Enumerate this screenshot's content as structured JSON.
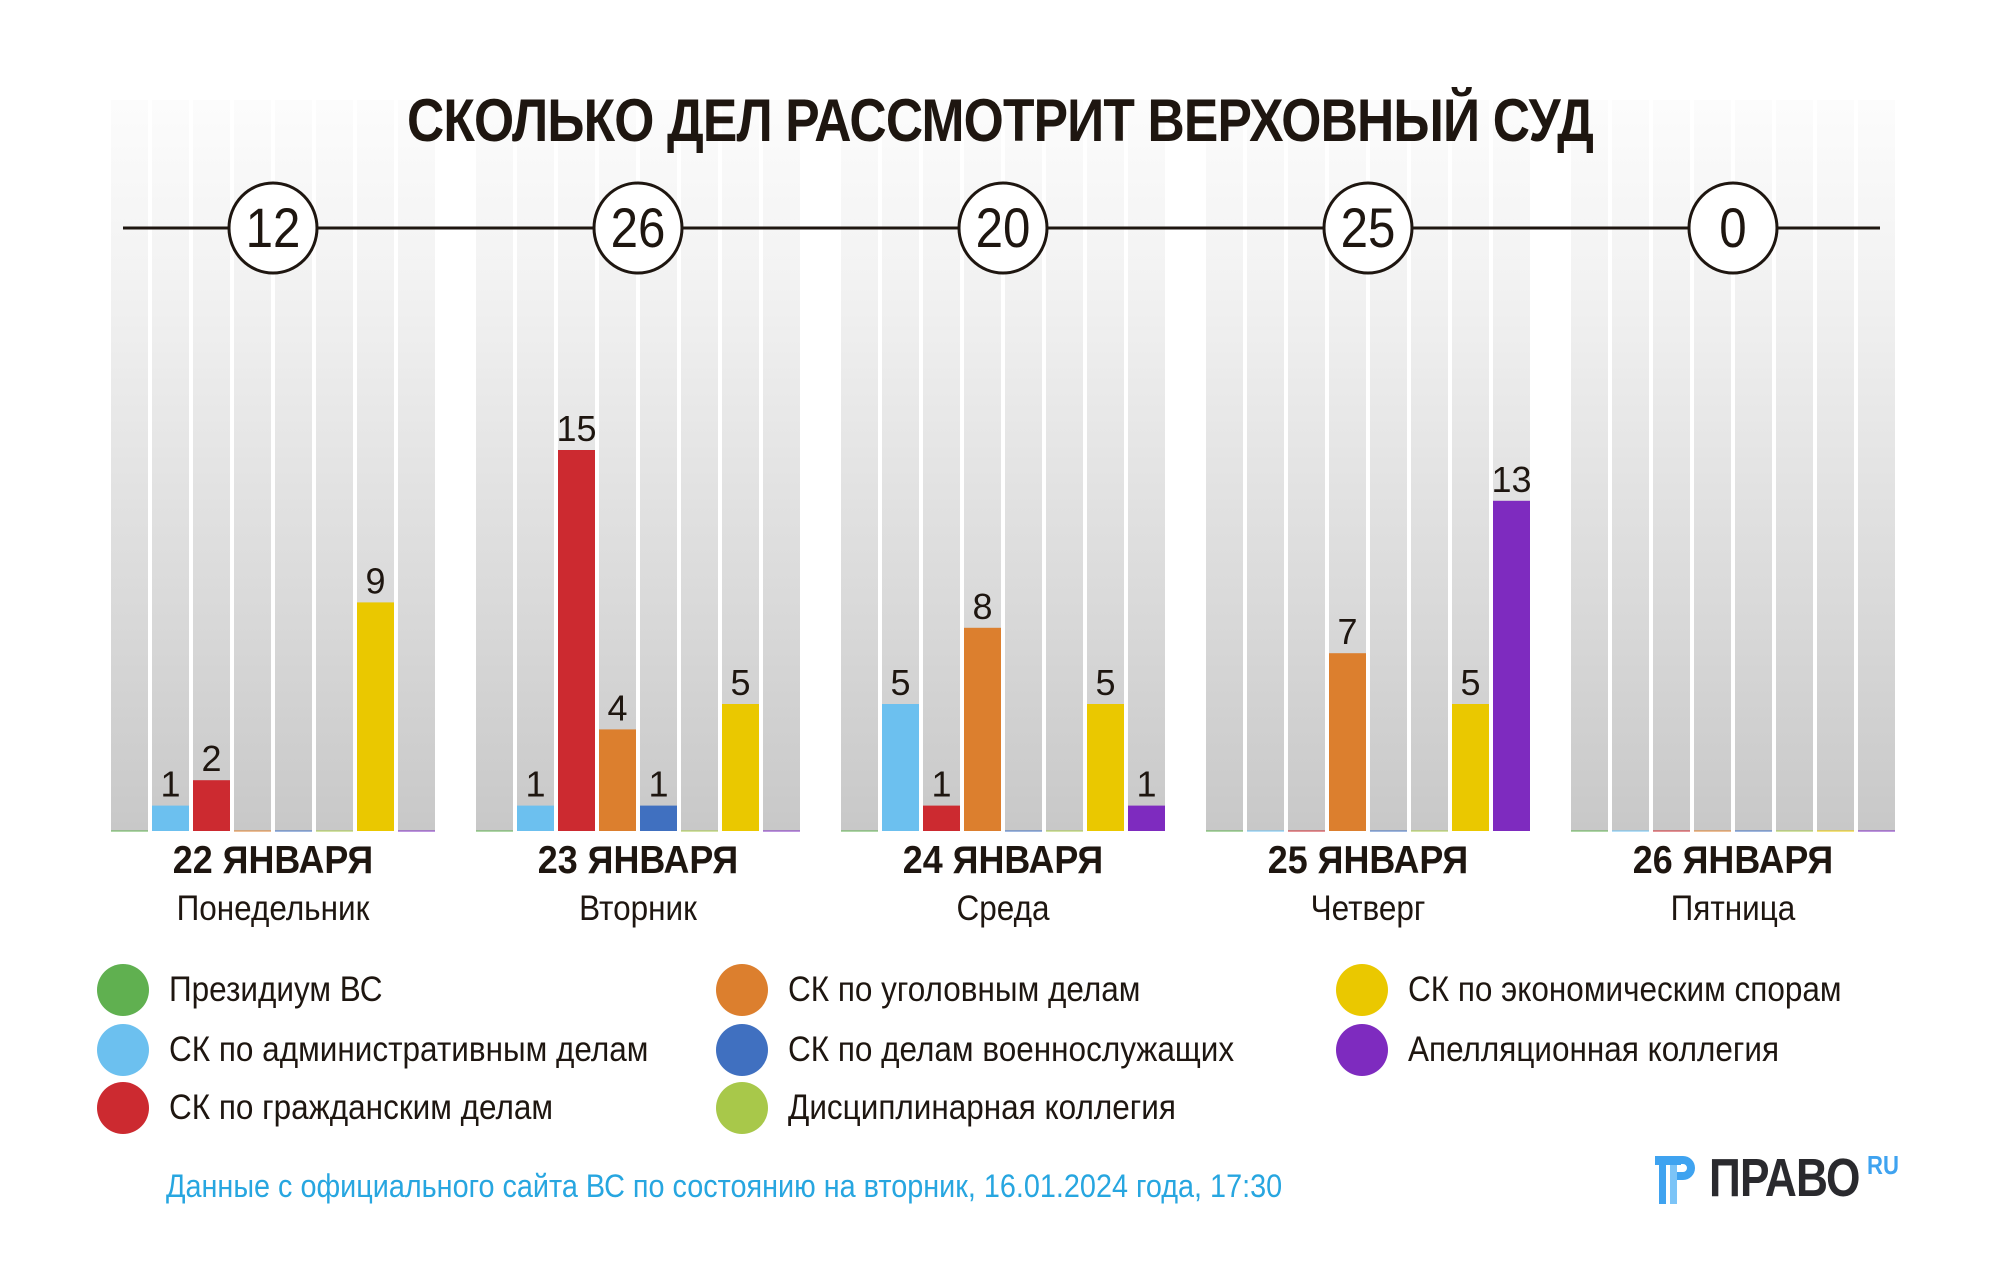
{
  "title": "СКОЛЬКО ДЕЛ РАССМОТРИТ ВЕРХОВНЫЙ СУД",
  "footer_note": "Данные с официального сайта ВС по состоянию на вторник, 16.01.2024 года, 17:30",
  "logo": {
    "text": "ПРАВО",
    "suffix": "RU",
    "icon": "pravo-logo-icon"
  },
  "colors": {
    "stripe_top": "#fafafa",
    "stripe_bottom": "#c8c8c8",
    "line": "#1e1610",
    "footer": "#27a6e0"
  },
  "chart_data": {
    "type": "bar",
    "title": "СКОЛЬКО ДЕЛ РАССМОТРИТ ВЕРХОВНЫЙ СУД",
    "xlabel": "",
    "ylabel": "",
    "ylim": [
      0,
      15
    ],
    "grid": false,
    "legend_position": "bottom",
    "categories": [
      {
        "date": "22 ЯНВАРЯ",
        "weekday": "Понедельник",
        "total": "12"
      },
      {
        "date": "23 ЯНВАРЯ",
        "weekday": "Вторник",
        "total": "26"
      },
      {
        "date": "24 ЯНВАРЯ",
        "weekday": "Среда",
        "total": "20"
      },
      {
        "date": "25 ЯНВАРЯ",
        "weekday": "Четверг",
        "total": "25"
      },
      {
        "date": "26 ЯНВАРЯ",
        "weekday": "Пятница",
        "total": "0"
      }
    ],
    "series": [
      {
        "name": "Президиум ВС",
        "color": "#60b050",
        "values": [
          0,
          0,
          0,
          0,
          0
        ]
      },
      {
        "name": "СК по административным делам",
        "color": "#6cc0ef",
        "values": [
          1,
          1,
          5,
          0,
          0
        ]
      },
      {
        "name": "СК по гражданским делам",
        "color": "#cc2a30",
        "values": [
          2,
          15,
          1,
          0,
          0
        ]
      },
      {
        "name": "СК по уголовным делам",
        "color": "#dc7f2e",
        "values": [
          0,
          4,
          8,
          7,
          0
        ]
      },
      {
        "name": "СК по делам военнослужащих",
        "color": "#4070c0",
        "values": [
          0,
          1,
          0,
          0,
          0
        ]
      },
      {
        "name": "Дисциплинарная коллегия",
        "color": "#a8c84a",
        "values": [
          0,
          0,
          0,
          0,
          0
        ]
      },
      {
        "name": "СК по экономическим спорам",
        "color": "#eac800",
        "values": [
          9,
          5,
          5,
          5,
          0
        ]
      },
      {
        "name": "Апелляционная коллегия",
        "color": "#7e2bbf",
        "values": [
          0,
          0,
          1,
          13,
          0
        ]
      }
    ],
    "legend_order": [
      0,
      1,
      2,
      3,
      4,
      5,
      6,
      7
    ]
  }
}
